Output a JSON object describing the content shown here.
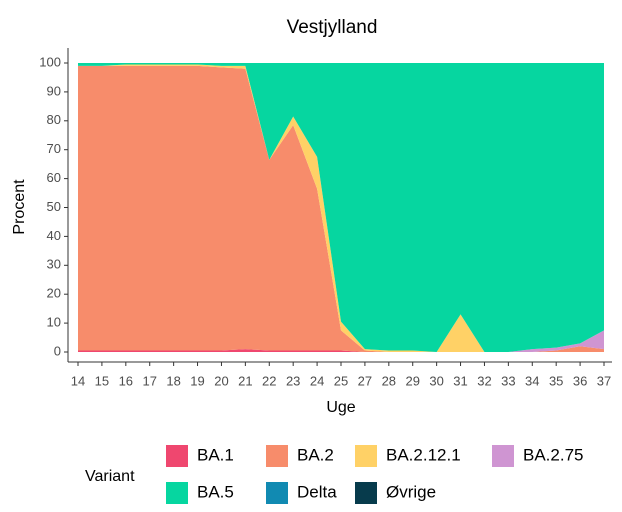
{
  "chart_data": {
    "type": "stacked_area",
    "title": "Vestjylland",
    "x_label": "Uge",
    "y_label": "Procent",
    "categories": [
      "14",
      "15",
      "16",
      "17",
      "18",
      "19",
      "20",
      "21",
      "22",
      "23",
      "24",
      "25",
      "27",
      "28",
      "29",
      "30",
      "31",
      "32",
      "33",
      "34",
      "35",
      "36",
      "37"
    ],
    "series": [
      {
        "name": "BA.1",
        "color": "#ef476f",
        "values": [
          0.5,
          0.5,
          0.5,
          0.5,
          0.5,
          0.5,
          0.5,
          1,
          0.5,
          0.5,
          0.5,
          0.5,
          0,
          0,
          0,
          0,
          0,
          0,
          0,
          0,
          0,
          0,
          0
        ]
      },
      {
        "name": "BA.2",
        "color": "#f78c6b",
        "values": [
          98.5,
          98.5,
          98.5,
          98.5,
          98.5,
          98.5,
          98,
          97,
          66,
          78,
          56,
          7,
          0.5,
          0,
          0,
          0,
          0,
          0,
          0,
          0,
          0.5,
          2,
          1
        ]
      },
      {
        "name": "BA.2.12.1",
        "color": "#ffd166",
        "values": [
          0,
          0,
          0.5,
          0.5,
          0.5,
          0.5,
          0.5,
          1,
          0,
          3,
          11,
          3,
          0.5,
          0.5,
          0.5,
          0,
          13,
          0,
          0,
          0,
          0,
          0,
          0
        ]
      },
      {
        "name": "BA.2.75",
        "color": "#cf95d2",
        "values": [
          0,
          0,
          0,
          0,
          0,
          0,
          0,
          0,
          0,
          0,
          0,
          0,
          0,
          0,
          0,
          0,
          0,
          0,
          0,
          1,
          1,
          1,
          6.5
        ]
      },
      {
        "name": "BA.5",
        "color": "#06d6a0",
        "values": [
          1,
          1,
          0.5,
          0.5,
          0.5,
          0.5,
          1,
          1,
          33.5,
          18.5,
          32.5,
          89.5,
          99,
          99.5,
          99.5,
          100,
          87,
          100,
          100,
          99,
          98.5,
          97,
          92.5
        ]
      },
      {
        "name": "Delta",
        "color": "#118ab2",
        "values": [
          0,
          0,
          0,
          0,
          0,
          0,
          0,
          0,
          0,
          0,
          0,
          0,
          0,
          0,
          0,
          0,
          0,
          0,
          0,
          0,
          0,
          0,
          0
        ]
      },
      {
        "name": "Øvrige",
        "color": "#073b4c",
        "values": [
          0,
          0,
          0,
          0,
          0,
          0,
          0,
          0,
          0,
          0,
          0,
          0,
          0,
          0,
          0,
          0,
          0,
          0,
          0,
          0,
          0,
          0,
          0
        ]
      }
    ],
    "legend_title": "Variant",
    "ylim": [
      0,
      100
    ],
    "yticks": [
      0,
      10,
      20,
      30,
      40,
      50,
      60,
      70,
      80,
      90,
      100
    ],
    "grid": false,
    "legend": "bottom"
  }
}
